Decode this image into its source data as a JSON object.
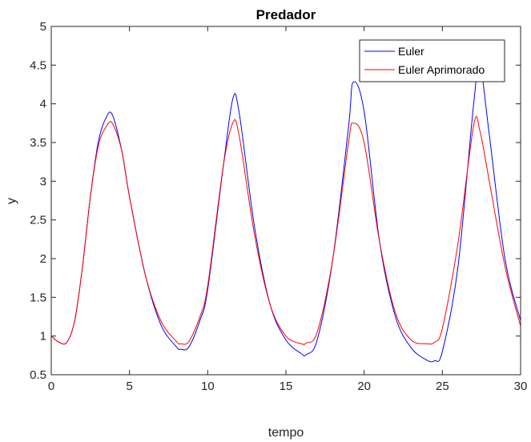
{
  "chart_data": {
    "type": "line",
    "title": "Predador",
    "xlabel": "tempo",
    "ylabel": "y",
    "xlim": [
      0,
      30
    ],
    "ylim": [
      0.5,
      5
    ],
    "xticks": [
      0,
      5,
      10,
      15,
      20,
      25,
      30
    ],
    "yticks": [
      0.5,
      1,
      1.5,
      2,
      2.5,
      3,
      3.5,
      4,
      4.5,
      5
    ],
    "xtick_labels": [
      "0",
      "5",
      "10",
      "15",
      "20",
      "25",
      "30"
    ],
    "ytick_labels": [
      "0.5",
      "1",
      "1.5",
      "2",
      "2.5",
      "3",
      "3.5",
      "4",
      "4.5",
      "5"
    ],
    "grid": false,
    "legend_position": "top-right",
    "series": [
      {
        "name": "Euler",
        "color": "#0000ff",
        "x": [
          0,
          0.5,
          1,
          1.5,
          2,
          2.5,
          3,
          3.5,
          3.9,
          4.5,
          5,
          6,
          7,
          8,
          8.3,
          8.8,
          9.5,
          10,
          11,
          11.6,
          12,
          13,
          14,
          15,
          16,
          16.3,
          17,
          18,
          19,
          19.3,
          20,
          21,
          22,
          23,
          24,
          24.5,
          25,
          26,
          27,
          27.4,
          28,
          29,
          30
        ],
        "values": [
          1.0,
          0.92,
          0.92,
          1.2,
          1.9,
          2.8,
          3.5,
          3.82,
          3.86,
          3.4,
          2.8,
          1.8,
          1.15,
          0.86,
          0.83,
          0.86,
          1.2,
          1.6,
          3.2,
          4.06,
          3.9,
          2.4,
          1.4,
          0.95,
          0.77,
          0.76,
          0.95,
          2.0,
          3.7,
          4.28,
          3.9,
          2.2,
          1.25,
          0.85,
          0.69,
          0.68,
          0.8,
          1.9,
          4.0,
          4.5,
          3.6,
          2.0,
          1.2
        ]
      },
      {
        "name": "Euler Aprimorado",
        "color": "#ff0000",
        "x": [
          0,
          0.5,
          1,
          1.5,
          2,
          2.5,
          3,
          3.5,
          3.9,
          4.5,
          5,
          6,
          7,
          8,
          8.3,
          8.8,
          9.5,
          10,
          11,
          11.6,
          12,
          13,
          14,
          15,
          16,
          16.3,
          17,
          18,
          19,
          19.3,
          20,
          21,
          22,
          23,
          24,
          24.5,
          25,
          26,
          27,
          27.4,
          28,
          29,
          30
        ],
        "values": [
          1.0,
          0.92,
          0.92,
          1.2,
          1.9,
          2.8,
          3.45,
          3.7,
          3.75,
          3.4,
          2.8,
          1.8,
          1.2,
          0.93,
          0.9,
          0.93,
          1.25,
          1.65,
          3.2,
          3.75,
          3.6,
          2.3,
          1.4,
          1.0,
          0.9,
          0.91,
          1.05,
          2.0,
          3.5,
          3.75,
          3.5,
          2.2,
          1.3,
          0.95,
          0.9,
          0.92,
          1.1,
          2.2,
          3.72,
          3.65,
          3.0,
          1.9,
          1.13
        ]
      }
    ]
  }
}
